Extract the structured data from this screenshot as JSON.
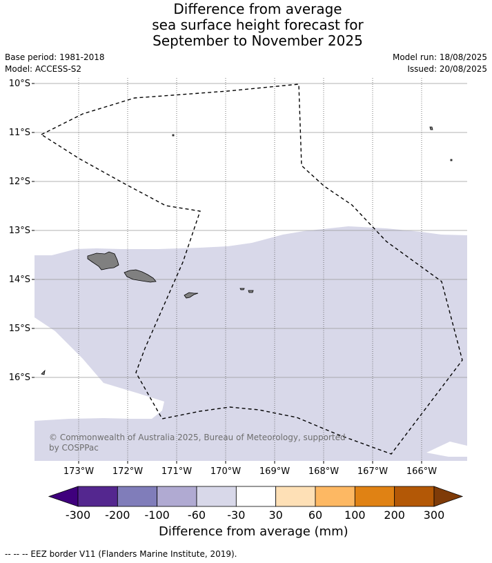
{
  "title": {
    "line1": "Difference from average",
    "line2": "sea surface height forecast for",
    "line3": "September to November 2025"
  },
  "meta": {
    "base_period": "Base period: 1981-2018",
    "model": "Model: ACCESS-S2",
    "model_run": "Model run: 18/08/2025",
    "issued": "Issued: 20/08/2025"
  },
  "map": {
    "lat_labels": [
      "10°S",
      "11°S",
      "12°S",
      "13°S",
      "14°S",
      "15°S",
      "16°S"
    ],
    "lon_labels": [
      "173°W",
      "172°W",
      "171°W",
      "170°W",
      "169°W",
      "168°W",
      "167°W",
      "166°W"
    ],
    "copyright_line1": "© Commonwealth of Australia 2025, Bureau of Meteorology, supported",
    "copyright_line2": "by COSPPac",
    "field_color": "#d8d8e9",
    "land_color": "#808080"
  },
  "colorbar": {
    "title": "Difference from average (mm)",
    "ticks": [
      "-300",
      "-200",
      "-100",
      "-60",
      "-30",
      "30",
      "60",
      "100",
      "200",
      "300"
    ],
    "colors": [
      "#3f007d",
      "#54278f",
      "#807dba",
      "#b0aad2",
      "#d8d8e9",
      "#ffffff",
      "#fee0b6",
      "#fdb863",
      "#e08214",
      "#b35806",
      "#7f3b08"
    ]
  },
  "footnote": "--  --  -- EEZ border V11 (Flanders Marine Institute, 2019)."
}
